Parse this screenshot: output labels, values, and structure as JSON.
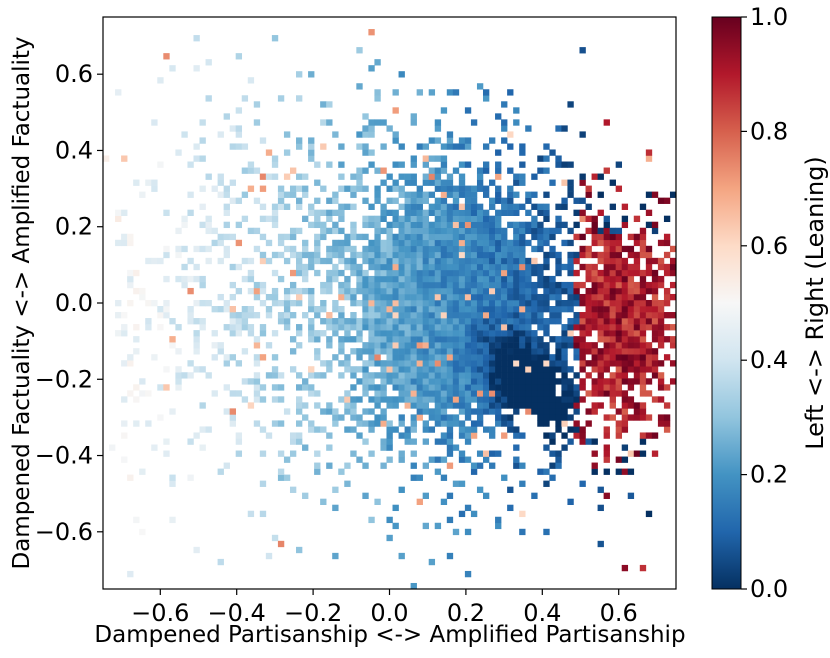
{
  "chart_data": {
    "type": "heatmap",
    "subtype": "2d-binned-scatter",
    "title": "",
    "xlabel": "Dampened Partisanship <-> Amplified Partisanship",
    "ylabel": "Dampened Factuality  <-> Amplified Factuality",
    "xlim": [
      -0.75,
      0.75
    ],
    "ylim": [
      -0.75,
      0.75
    ],
    "x_ticks": [
      -0.6,
      -0.4,
      -0.2,
      0.0,
      0.2,
      0.4,
      0.6
    ],
    "y_ticks": [
      -0.6,
      -0.4,
      -0.2,
      0.0,
      0.2,
      0.4,
      0.6
    ],
    "x_tick_labels": [
      "−0.6",
      "−0.4",
      "−0.2",
      "0.0",
      "0.2",
      "0.4",
      "0.6"
    ],
    "y_tick_labels": [
      "−0.6",
      "−0.4",
      "−0.2",
      "0.0",
      "0.2",
      "0.4",
      "0.6"
    ],
    "grid": false,
    "colorbar": {
      "label": "Left <-> Right (Leaning)",
      "colormap": "RdBu_r",
      "range": [
        0.0,
        1.0
      ],
      "ticks": [
        0.0,
        0.2,
        0.4,
        0.6,
        0.8,
        1.0
      ],
      "tick_labels": [
        "0.0",
        "0.2",
        "0.4",
        "0.6",
        "0.8",
        "1.0"
      ],
      "colors": [
        "#053061",
        "#2166ac",
        "#4393c3",
        "#92c5de",
        "#d1e5f0",
        "#f7f7f7",
        "#fddbc7",
        "#f4a582",
        "#d6604d",
        "#b2182b",
        "#67001f"
      ]
    },
    "regions": [
      {
        "description": "dense mid-blue core",
        "x_range": [
          0.0,
          0.35
        ],
        "y_range": [
          -0.3,
          0.35
        ],
        "leaning": 0.25
      },
      {
        "description": "light blue spread",
        "x_range": [
          -0.35,
          0.0
        ],
        "y_range": [
          -0.35,
          0.5
        ],
        "leaning": 0.38
      },
      {
        "description": "faint left fringe",
        "x_range": [
          -0.75,
          -0.35
        ],
        "y_range": [
          -0.4,
          0.5
        ],
        "leaning": 0.48
      },
      {
        "description": "dark blue diagonal band",
        "x_range": [
          0.2,
          0.5
        ],
        "y_range": [
          -0.45,
          -0.1
        ],
        "leaning": 0.08
      },
      {
        "description": "dark red right cluster",
        "x_range": [
          0.5,
          0.75
        ],
        "y_range": [
          -0.4,
          0.2
        ],
        "leaning": 0.95
      }
    ]
  }
}
